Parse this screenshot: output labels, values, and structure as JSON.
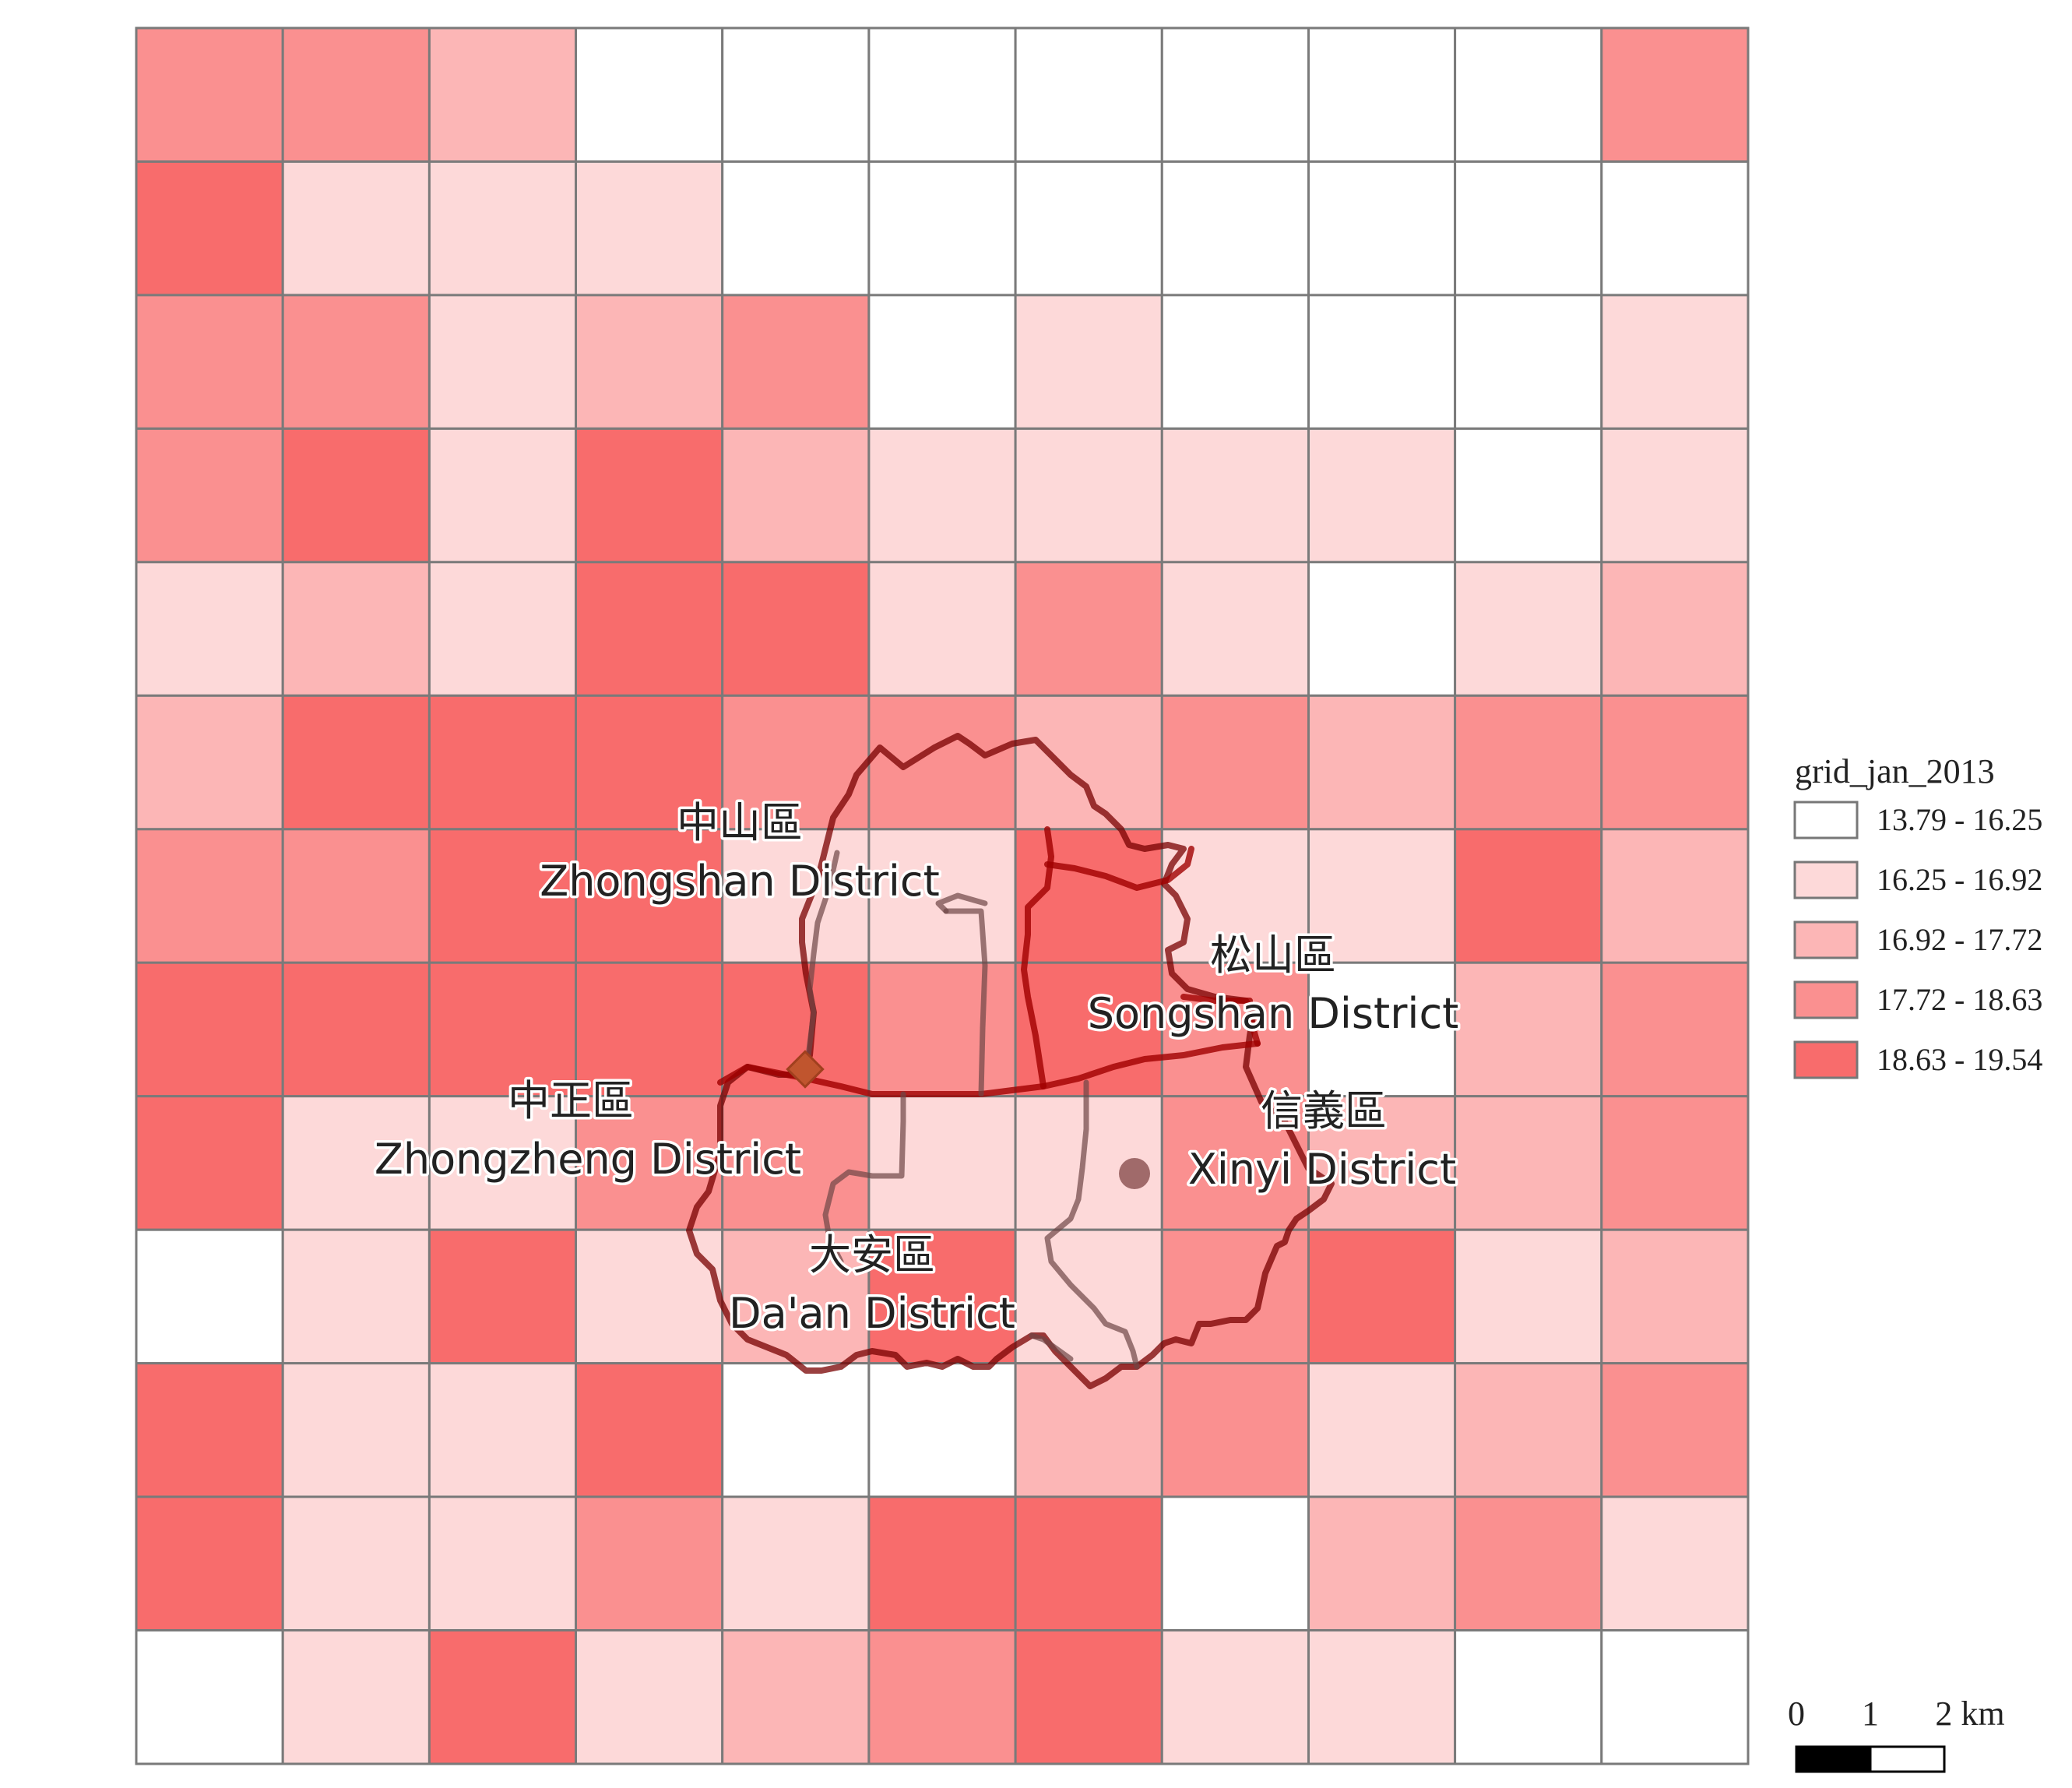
{
  "legend": {
    "title": "grid_jan_2013",
    "classes": [
      {
        "label": "13.79 - 16.25",
        "color": "#ffffff"
      },
      {
        "label": "16.25 - 16.92",
        "color": "#fdd9d9"
      },
      {
        "label": "16.92 - 17.72",
        "color": "#fcb6b6"
      },
      {
        "label": "17.72 - 18.63",
        "color": "#fa9090"
      },
      {
        "label": "18.63 - 19.54",
        "color": "#f86c6c"
      }
    ]
  },
  "grid": {
    "rows": 13,
    "cols": 11,
    "classes": [
      [
        3,
        3,
        2,
        0,
        0,
        0,
        0,
        0,
        0,
        0,
        3
      ],
      [
        4,
        1,
        1,
        1,
        0,
        0,
        0,
        0,
        0,
        0,
        0
      ],
      [
        3,
        3,
        1,
        2,
        3,
        0,
        1,
        0,
        0,
        0,
        1
      ],
      [
        3,
        4,
        1,
        4,
        2,
        1,
        1,
        1,
        1,
        0,
        1
      ],
      [
        1,
        2,
        1,
        4,
        4,
        1,
        3,
        1,
        0,
        1,
        2
      ],
      [
        2,
        4,
        4,
        4,
        3,
        3,
        2,
        3,
        2,
        3,
        3
      ],
      [
        3,
        3,
        4,
        4,
        1,
        1,
        4,
        1,
        1,
        4,
        2
      ],
      [
        4,
        4,
        4,
        4,
        4,
        3,
        4,
        3,
        0,
        2,
        3
      ],
      [
        4,
        1,
        1,
        3,
        3,
        1,
        1,
        3,
        2,
        2,
        3
      ],
      [
        0,
        1,
        4,
        1,
        2,
        4,
        1,
        3,
        4,
        1,
        2
      ],
      [
        4,
        1,
        1,
        4,
        0,
        0,
        2,
        3,
        1,
        2,
        3
      ],
      [
        4,
        1,
        1,
        3,
        1,
        4,
        4,
        0,
        2,
        3,
        1
      ],
      [
        0,
        1,
        4,
        1,
        2,
        3,
        4,
        1,
        1,
        0,
        0
      ]
    ]
  },
  "districts": [
    {
      "zh": "中山區",
      "en": "Zhongshan District"
    },
    {
      "zh": "松山區",
      "en": "Songshan District"
    },
    {
      "zh": "中正區",
      "en": "Zhongzheng District"
    },
    {
      "zh": "信義區",
      "en": "Xinyi District"
    },
    {
      "zh": "大安區",
      "en": "Da'an District"
    }
  ],
  "scale_bar": {
    "labels": [
      "0",
      "1",
      "2 km"
    ]
  }
}
